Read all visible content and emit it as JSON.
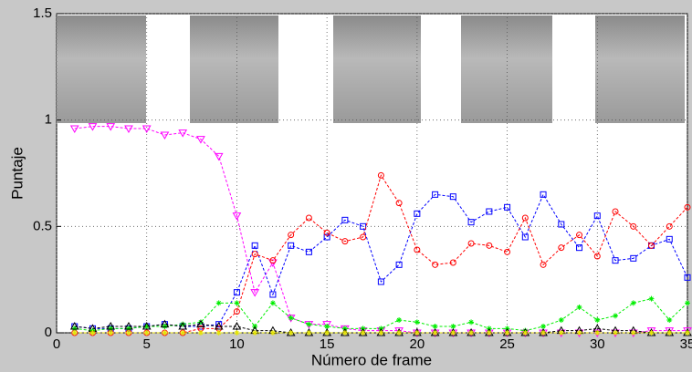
{
  "chart_data": {
    "type": "line",
    "xlabel": "Número de frame",
    "ylabel": "Puntaje",
    "x": [
      1,
      2,
      3,
      4,
      5,
      6,
      7,
      8,
      9,
      10,
      11,
      12,
      13,
      14,
      15,
      16,
      17,
      18,
      19,
      20,
      21,
      22,
      23,
      24,
      25,
      26,
      27,
      28,
      29,
      30,
      31,
      32,
      33,
      34,
      35
    ],
    "xlim": [
      0,
      35
    ],
    "xticks": [
      0,
      5,
      10,
      15,
      20,
      25,
      30,
      35
    ],
    "ylim": [
      0,
      1.5
    ],
    "yticks": [
      0,
      0.5,
      1,
      1.5
    ],
    "grid": true,
    "series": [
      {
        "color": "#ff00ff",
        "marker": "triangle-down",
        "values": [
          0.96,
          0.97,
          0.97,
          0.96,
          0.96,
          0.93,
          0.94,
          0.91,
          0.83,
          0.55,
          0.19,
          0.33,
          0.07,
          0.04,
          0.04,
          0.02,
          0.01,
          0.01,
          0.01,
          0,
          0,
          0,
          0,
          0,
          0,
          0,
          0,
          0,
          0,
          0,
          0,
          0,
          0.01,
          0.01,
          0.01
        ]
      },
      {
        "color": "#0000ff",
        "marker": "square",
        "values": [
          0.03,
          0.02,
          0.02,
          0.02,
          0.03,
          0.04,
          0.03,
          0.03,
          0.04,
          0.19,
          0.41,
          0.18,
          0.41,
          0.38,
          0.45,
          0.53,
          0.5,
          0.24,
          0.32,
          0.56,
          0.65,
          0.64,
          0.52,
          0.57,
          0.59,
          0.45,
          0.65,
          0.51,
          0.4,
          0.55,
          0.34,
          0.35,
          0.41,
          0.44,
          0.26
        ]
      },
      {
        "color": "#ff0000",
        "marker": "circle",
        "values": [
          0,
          0,
          0,
          0,
          0,
          0,
          0,
          0.02,
          0.02,
          0.1,
          0.37,
          0.34,
          0.46,
          0.54,
          0.47,
          0.43,
          0.45,
          0.74,
          0.61,
          0.39,
          0.32,
          0.33,
          0.42,
          0.41,
          0.38,
          0.54,
          0.32,
          0.4,
          0.46,
          0.36,
          0.57,
          0.5,
          0.41,
          0.5,
          0.59
        ]
      },
      {
        "color": "#00ee00",
        "marker": "star",
        "values": [
          0.02,
          0.01,
          0.02,
          0.02,
          0.03,
          0.03,
          0.04,
          0.05,
          0.14,
          0.14,
          0.03,
          0.14,
          0.07,
          0.04,
          0.03,
          0.02,
          0.02,
          0.02,
          0.06,
          0.05,
          0.03,
          0.03,
          0.05,
          0.02,
          0.02,
          0.01,
          0.03,
          0.06,
          0.12,
          0.06,
          0.08,
          0.14,
          0.16,
          0.06,
          0.14
        ]
      },
      {
        "color": "#000000",
        "marker": "triangle-up",
        "values": [
          0.03,
          0.02,
          0.03,
          0.03,
          0.03,
          0.04,
          0.03,
          0.04,
          0.03,
          0.03,
          0.01,
          0.01,
          0,
          0,
          0,
          0,
          0,
          0,
          0,
          0,
          0,
          0,
          0,
          0,
          0,
          0,
          0,
          0.01,
          0.01,
          0.02,
          0.01,
          0.01,
          0,
          0,
          0
        ]
      },
      {
        "color": "#e6e600",
        "marker": "star",
        "values": [
          0,
          0,
          0,
          0,
          0,
          0,
          0,
          0,
          0,
          0,
          0,
          0,
          0,
          0,
          0,
          0,
          0,
          0,
          0,
          0,
          0,
          0,
          0,
          0,
          0,
          0,
          0,
          0,
          0,
          0,
          0,
          0,
          0,
          0,
          0
        ]
      }
    ]
  }
}
